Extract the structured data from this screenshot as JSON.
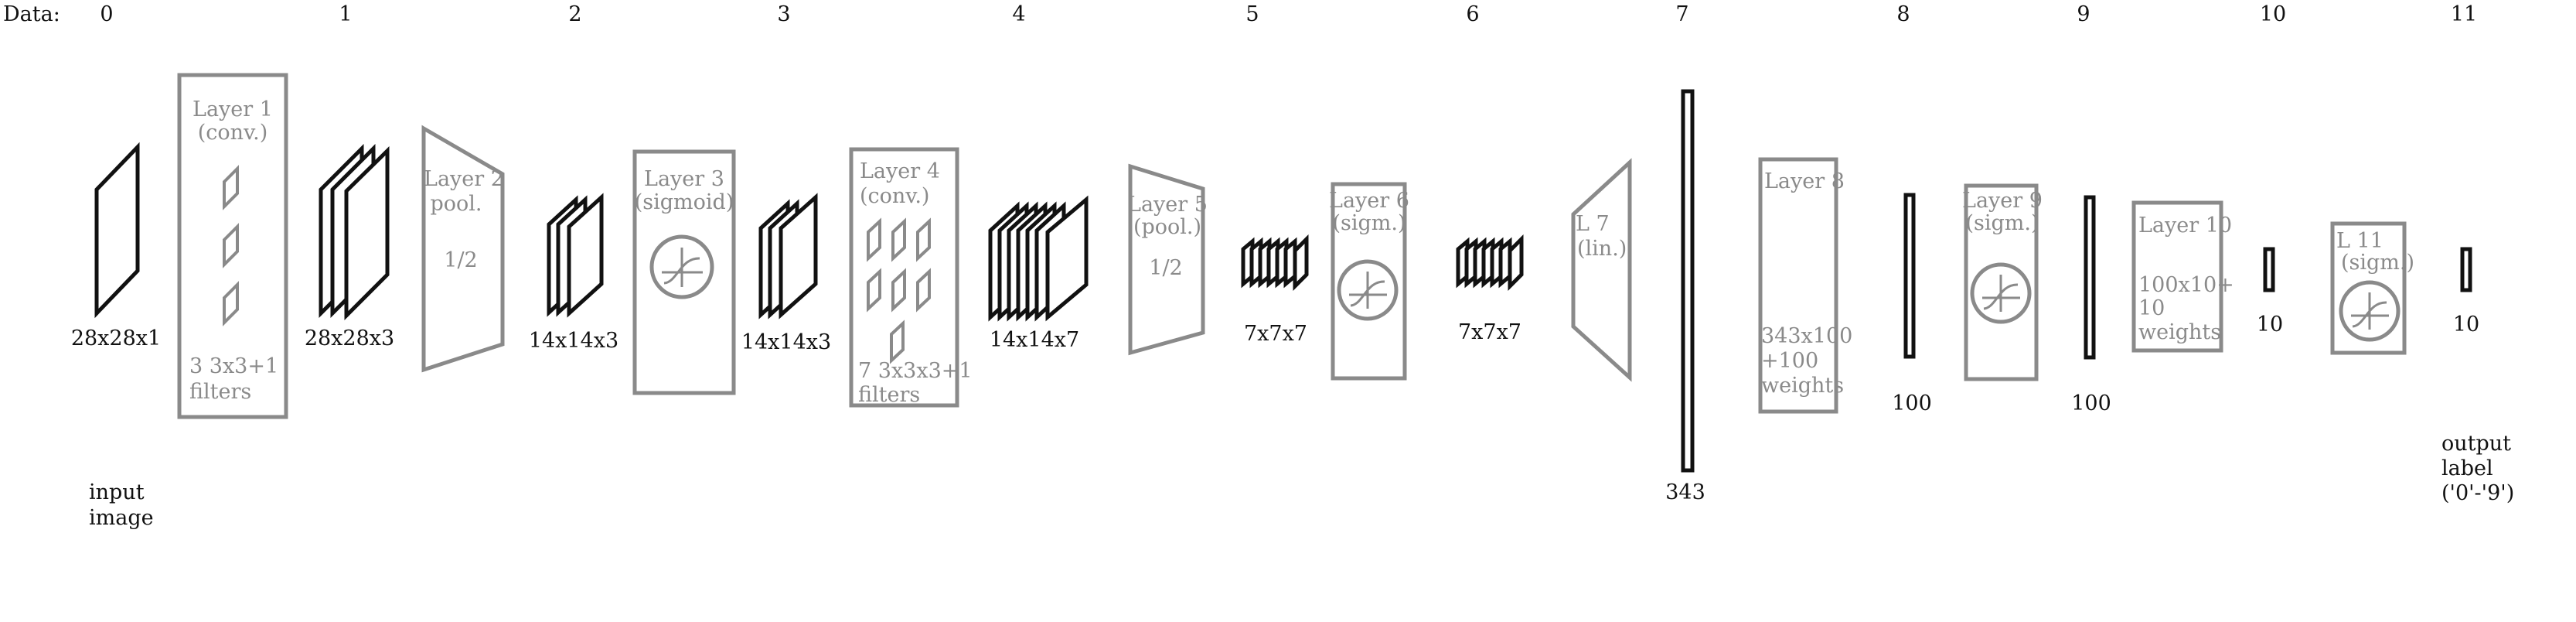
{
  "header": {
    "label": "Data:",
    "indices": [
      "0",
      "1",
      "2",
      "3",
      "4",
      "5",
      "6",
      "7",
      "8",
      "9",
      "10",
      "11"
    ]
  },
  "data_labels": {
    "d0": "28x28x1",
    "d1": "28x28x3",
    "d2": "14x14x3",
    "d3": "14x14x3",
    "d4": "14x14x7",
    "d5": "7x7x7",
    "d6": "7x7x7",
    "d7": "343",
    "d8": "100",
    "d9": "100",
    "d10": "10",
    "d11": "10"
  },
  "layers": {
    "l1": {
      "title": "Layer 1",
      "sub": "(conv.)",
      "foot1": "3 3x3+1",
      "foot2": "filters"
    },
    "l2": {
      "title": "Layer 2",
      "sub": "pool.",
      "note": "1/2"
    },
    "l3": {
      "title": "Layer 3",
      "sub": "(sigmoid)"
    },
    "l4": {
      "title": "Layer 4",
      "sub": "(conv.)",
      "foot1": "7 3x3x3+1",
      "foot2": "filters"
    },
    "l5": {
      "title": "Layer 5",
      "sub": "(pool.)",
      "note": "1/2"
    },
    "l6": {
      "title": "Layer 6",
      "sub": "(sigm.)"
    },
    "l7": {
      "title": "L 7",
      "sub": "(lin.)"
    },
    "l8": {
      "title": "Layer 8",
      "foot1": "343x100",
      "foot2": "+100",
      "foot3": "weights"
    },
    "l9": {
      "title": "Layer 9",
      "sub": "(sigm.)"
    },
    "l10": {
      "title": "Layer 10",
      "foot1": "100x10+",
      "foot2": "10",
      "foot3": "weights"
    },
    "l11": {
      "title": "L   11",
      "sub": "(sigm.)"
    }
  },
  "notes": {
    "input1": "input",
    "input2": "image",
    "output1": "output",
    "output2": "label",
    "output3": "('0'-'9')"
  }
}
